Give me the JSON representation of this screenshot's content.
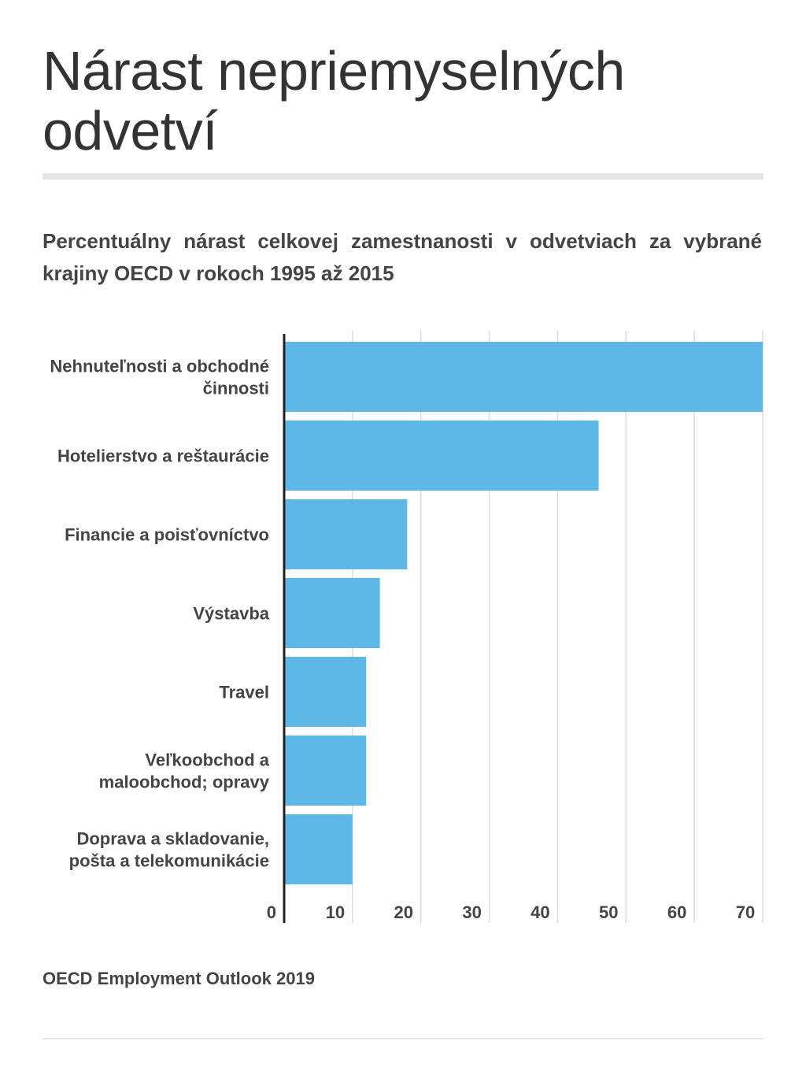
{
  "title": "Nárast nepriemyselných odvetví",
  "subtitle": "Percentuálny nárast celkovej zamestnanosti v odvetviach za vybrané krajiny OECD v rokoch 1995 až 2015",
  "source": "OECD Employment Outlook 2019",
  "colors": {
    "bar": "#5db8e6",
    "grid": "#dcdcdc",
    "axis": "#222222",
    "text": "#444444"
  },
  "chart_data": {
    "type": "bar",
    "orientation": "horizontal",
    "categories": [
      [
        "Nehnuteľnosti a obchodné",
        "činnosti"
      ],
      [
        "Hotelierstvo a reštaurácie"
      ],
      [
        "Financie a poisťovníctvo"
      ],
      [
        "Výstavba"
      ],
      [
        "Travel"
      ],
      [
        "Veľkoobchod a",
        "maloobchod; opravy"
      ],
      [
        "Doprava a skladovanie,",
        "pošta a telekomunikácie"
      ]
    ],
    "values": [
      70,
      46,
      18,
      14,
      12,
      12,
      10
    ],
    "xlim": [
      0,
      70
    ],
    "xticks": [
      0,
      10,
      20,
      30,
      40,
      50,
      60,
      70
    ],
    "grid": true,
    "xlabel": "",
    "ylabel": ""
  }
}
